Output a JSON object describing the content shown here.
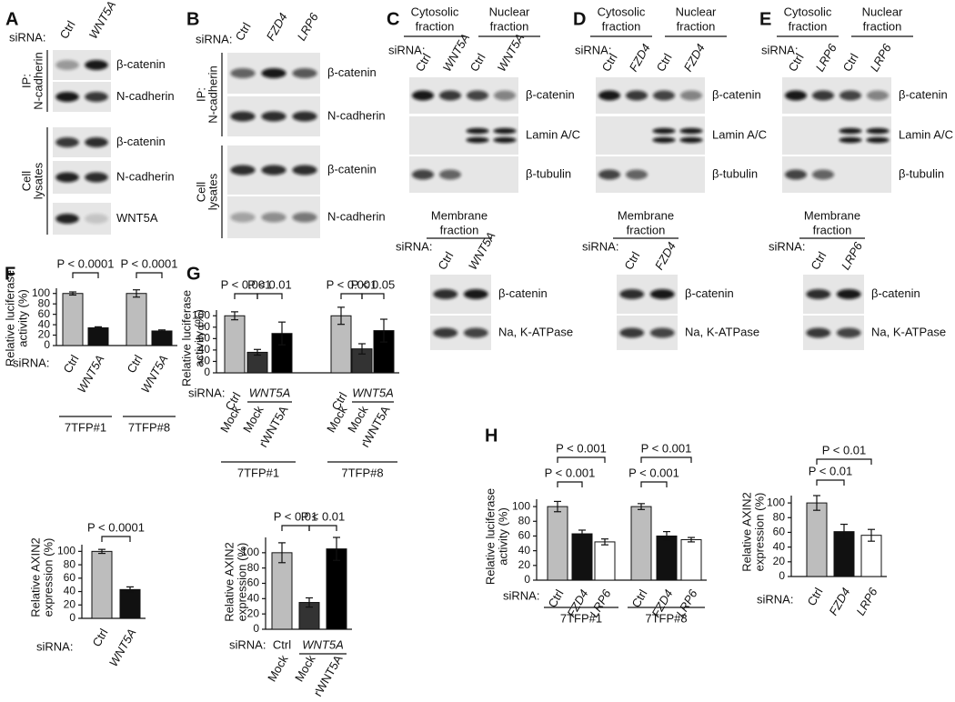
{
  "blots": [
    {
      "letter": "A",
      "sirna": "siRNA:",
      "lanes": [
        "Ctrl",
        "WNT5A"
      ],
      "rows": [
        "β-catenin",
        "N-cadherin",
        "β-catenin",
        "N-cadherin",
        "WNT5A"
      ],
      "side_labels": [
        [
          "IP:",
          "N-cadherin"
        ],
        [
          "Cell",
          "lysates"
        ]
      ]
    },
    {
      "letter": "B",
      "sirna": "siRNA:",
      "lanes": [
        "Ctrl",
        "FZD4",
        "LRP6"
      ],
      "rows": [
        "β-catenin",
        "N-cadherin",
        "β-catenin",
        "N-cadherin"
      ],
      "side_labels": [
        [
          "IP:",
          "N-cadherin"
        ],
        [
          "Cell",
          "lysates"
        ]
      ]
    },
    {
      "letter": "C",
      "fractions": [
        [
          "Cytosolic",
          "fraction"
        ],
        [
          "Nuclear",
          "fraction"
        ]
      ],
      "sirna": "siRNA:",
      "lanes": [
        "Ctrl",
        "WNT5A",
        "Ctrl",
        "WNT5A"
      ],
      "rows": [
        "β-catenin",
        "Lamin A/C",
        "β-tubulin"
      ],
      "membrane": {
        "title": [
          "Membrane",
          "fraction"
        ],
        "sirna": "siRNA:",
        "lanes": [
          "Ctrl",
          "WNT5A"
        ],
        "rows": [
          "β-catenin",
          "Na, K-ATPase"
        ]
      }
    },
    {
      "letter": "D",
      "fractions": [
        [
          "Cytosolic",
          "fraction"
        ],
        [
          "Nuclear",
          "fraction"
        ]
      ],
      "sirna": "siRNA:",
      "lanes": [
        "Ctrl",
        "FZD4",
        "Ctrl",
        "FZD4"
      ],
      "rows": [
        "β-catenin",
        "Lamin A/C",
        "β-tubulin"
      ],
      "membrane": {
        "title": [
          "Membrane",
          "fraction"
        ],
        "sirna": "siRNA:",
        "lanes": [
          "Ctrl",
          "FZD4"
        ],
        "rows": [
          "β-catenin",
          "Na, K-ATPase"
        ]
      }
    },
    {
      "letter": "E",
      "fractions": [
        [
          "Cytosolic",
          "fraction"
        ],
        [
          "Nuclear",
          "fraction"
        ]
      ],
      "sirna": "siRNA:",
      "lanes": [
        "Ctrl",
        "LRP6",
        "Ctrl",
        "LRP6"
      ],
      "rows": [
        "β-catenin",
        "Lamin A/C",
        "β-tubulin"
      ],
      "membrane": {
        "title": [
          "Membrane",
          "fraction"
        ],
        "sirna": "siRNA:",
        "lanes": [
          "Ctrl",
          "LRP6"
        ],
        "rows": [
          "β-catenin",
          "Na, K-ATPase"
        ]
      }
    }
  ],
  "chart_data": [
    {
      "type": "bar",
      "panel": "F",
      "ylabel": [
        "Relative luciferase",
        "activity (%)"
      ],
      "ylim": [
        0,
        110
      ],
      "yticks": [
        0,
        20,
        40,
        60,
        80,
        100
      ],
      "sirna_label": "siRNA:",
      "categories": [
        "Ctrl",
        "WNT5A",
        "Ctrl",
        "WNT5A"
      ],
      "values": [
        100,
        34,
        100,
        28
      ],
      "errors": [
        3,
        2,
        7,
        2
      ],
      "colors": [
        "#bdbdbd",
        "#111111",
        "#bdbdbd",
        "#111111"
      ],
      "groups": [
        "7TFP#1",
        "7TFP#8"
      ],
      "annotations": [
        "P < 0.0001",
        "P < 0.0001"
      ]
    },
    {
      "type": "bar",
      "panel": "G",
      "ylabel": [
        "Relative luciferase",
        "activity (%)"
      ],
      "ylim": [
        0,
        110
      ],
      "yticks": [
        0,
        20,
        40,
        60,
        80,
        100
      ],
      "sirna_label": "siRNA:",
      "sirna_labels": [
        "Ctrl",
        "WNT5A",
        "Ctrl",
        "WNT5A"
      ],
      "categories": [
        "Mock",
        "Mock",
        "rWNT5A",
        "Mock",
        "Mock",
        "rWNT5A"
      ],
      "values": [
        100,
        36,
        69,
        100,
        42,
        74
      ],
      "errors": [
        7,
        5,
        20,
        15,
        9,
        20
      ],
      "colors": [
        "#bdbdbd",
        "#333333",
        "#000000",
        "#bdbdbd",
        "#333333",
        "#000000"
      ],
      "groups": [
        "7TFP#1",
        "7TFP#8"
      ],
      "annotations": [
        "P < 0.001",
        "P < 0.01",
        "P < 0.001",
        "P < 0.05"
      ]
    },
    {
      "type": "bar",
      "ylabel": [
        "Relative AXIN2",
        "expression (%)"
      ],
      "ylim": [
        0,
        110
      ],
      "yticks": [
        0,
        20,
        40,
        60,
        80,
        100
      ],
      "sirna_label": "siRNA:",
      "categories": [
        "Ctrl",
        "WNT5A"
      ],
      "values": [
        100,
        43
      ],
      "errors": [
        3,
        4
      ],
      "colors": [
        "#bdbdbd",
        "#111111"
      ],
      "annotations": [
        "P < 0.0001"
      ]
    },
    {
      "type": "bar",
      "ylabel": [
        "Relative AXIN2",
        "expression (%)"
      ],
      "ylim": [
        0,
        120
      ],
      "yticks": [
        0,
        20,
        40,
        60,
        80,
        100
      ],
      "sirna_label": "siRNA:",
      "sirna_labels": [
        "Ctrl",
        "WNT5A"
      ],
      "categories": [
        "Mock",
        "Mock",
        "rWNT5A"
      ],
      "values": [
        100,
        35,
        105
      ],
      "errors": [
        13,
        6,
        15
      ],
      "colors": [
        "#bdbdbd",
        "#333333",
        "#000000"
      ],
      "annotations": [
        "P < 0.01",
        "P < 0.01"
      ]
    },
    {
      "type": "bar",
      "panel": "H",
      "ylabel": [
        "Relative luciferase",
        "activity (%)"
      ],
      "ylim": [
        0,
        110
      ],
      "yticks": [
        0,
        20,
        40,
        60,
        80,
        100
      ],
      "sirna_label": "siRNA:",
      "categories": [
        "Ctrl",
        "FZD4",
        "LRP6",
        "Ctrl",
        "FZD4",
        "LRP6"
      ],
      "values": [
        100,
        63,
        52,
        100,
        60,
        55
      ],
      "errors": [
        7,
        5,
        4,
        4,
        6,
        3
      ],
      "colors": [
        "#bdbdbd",
        "#111111",
        "#ffffff",
        "#bdbdbd",
        "#111111",
        "#ffffff"
      ],
      "groups": [
        "7TFP#1",
        "7TFP#8"
      ],
      "annotations": [
        "P < 0.001",
        "P < 0.001",
        "P < 0.001",
        "P < 0.001"
      ]
    },
    {
      "type": "bar",
      "ylabel": [
        "Relative AXIN2",
        "expression (%)"
      ],
      "ylim": [
        0,
        110
      ],
      "yticks": [
        0,
        20,
        40,
        60,
        80,
        100
      ],
      "sirna_label": "siRNA:",
      "categories": [
        "Ctrl",
        "FZD4",
        "LRP6"
      ],
      "values": [
        100,
        61,
        56
      ],
      "errors": [
        10,
        10,
        8
      ],
      "colors": [
        "#bdbdbd",
        "#111111",
        "#ffffff"
      ],
      "annotations": [
        "P < 0.01",
        "P < 0.01"
      ]
    }
  ]
}
